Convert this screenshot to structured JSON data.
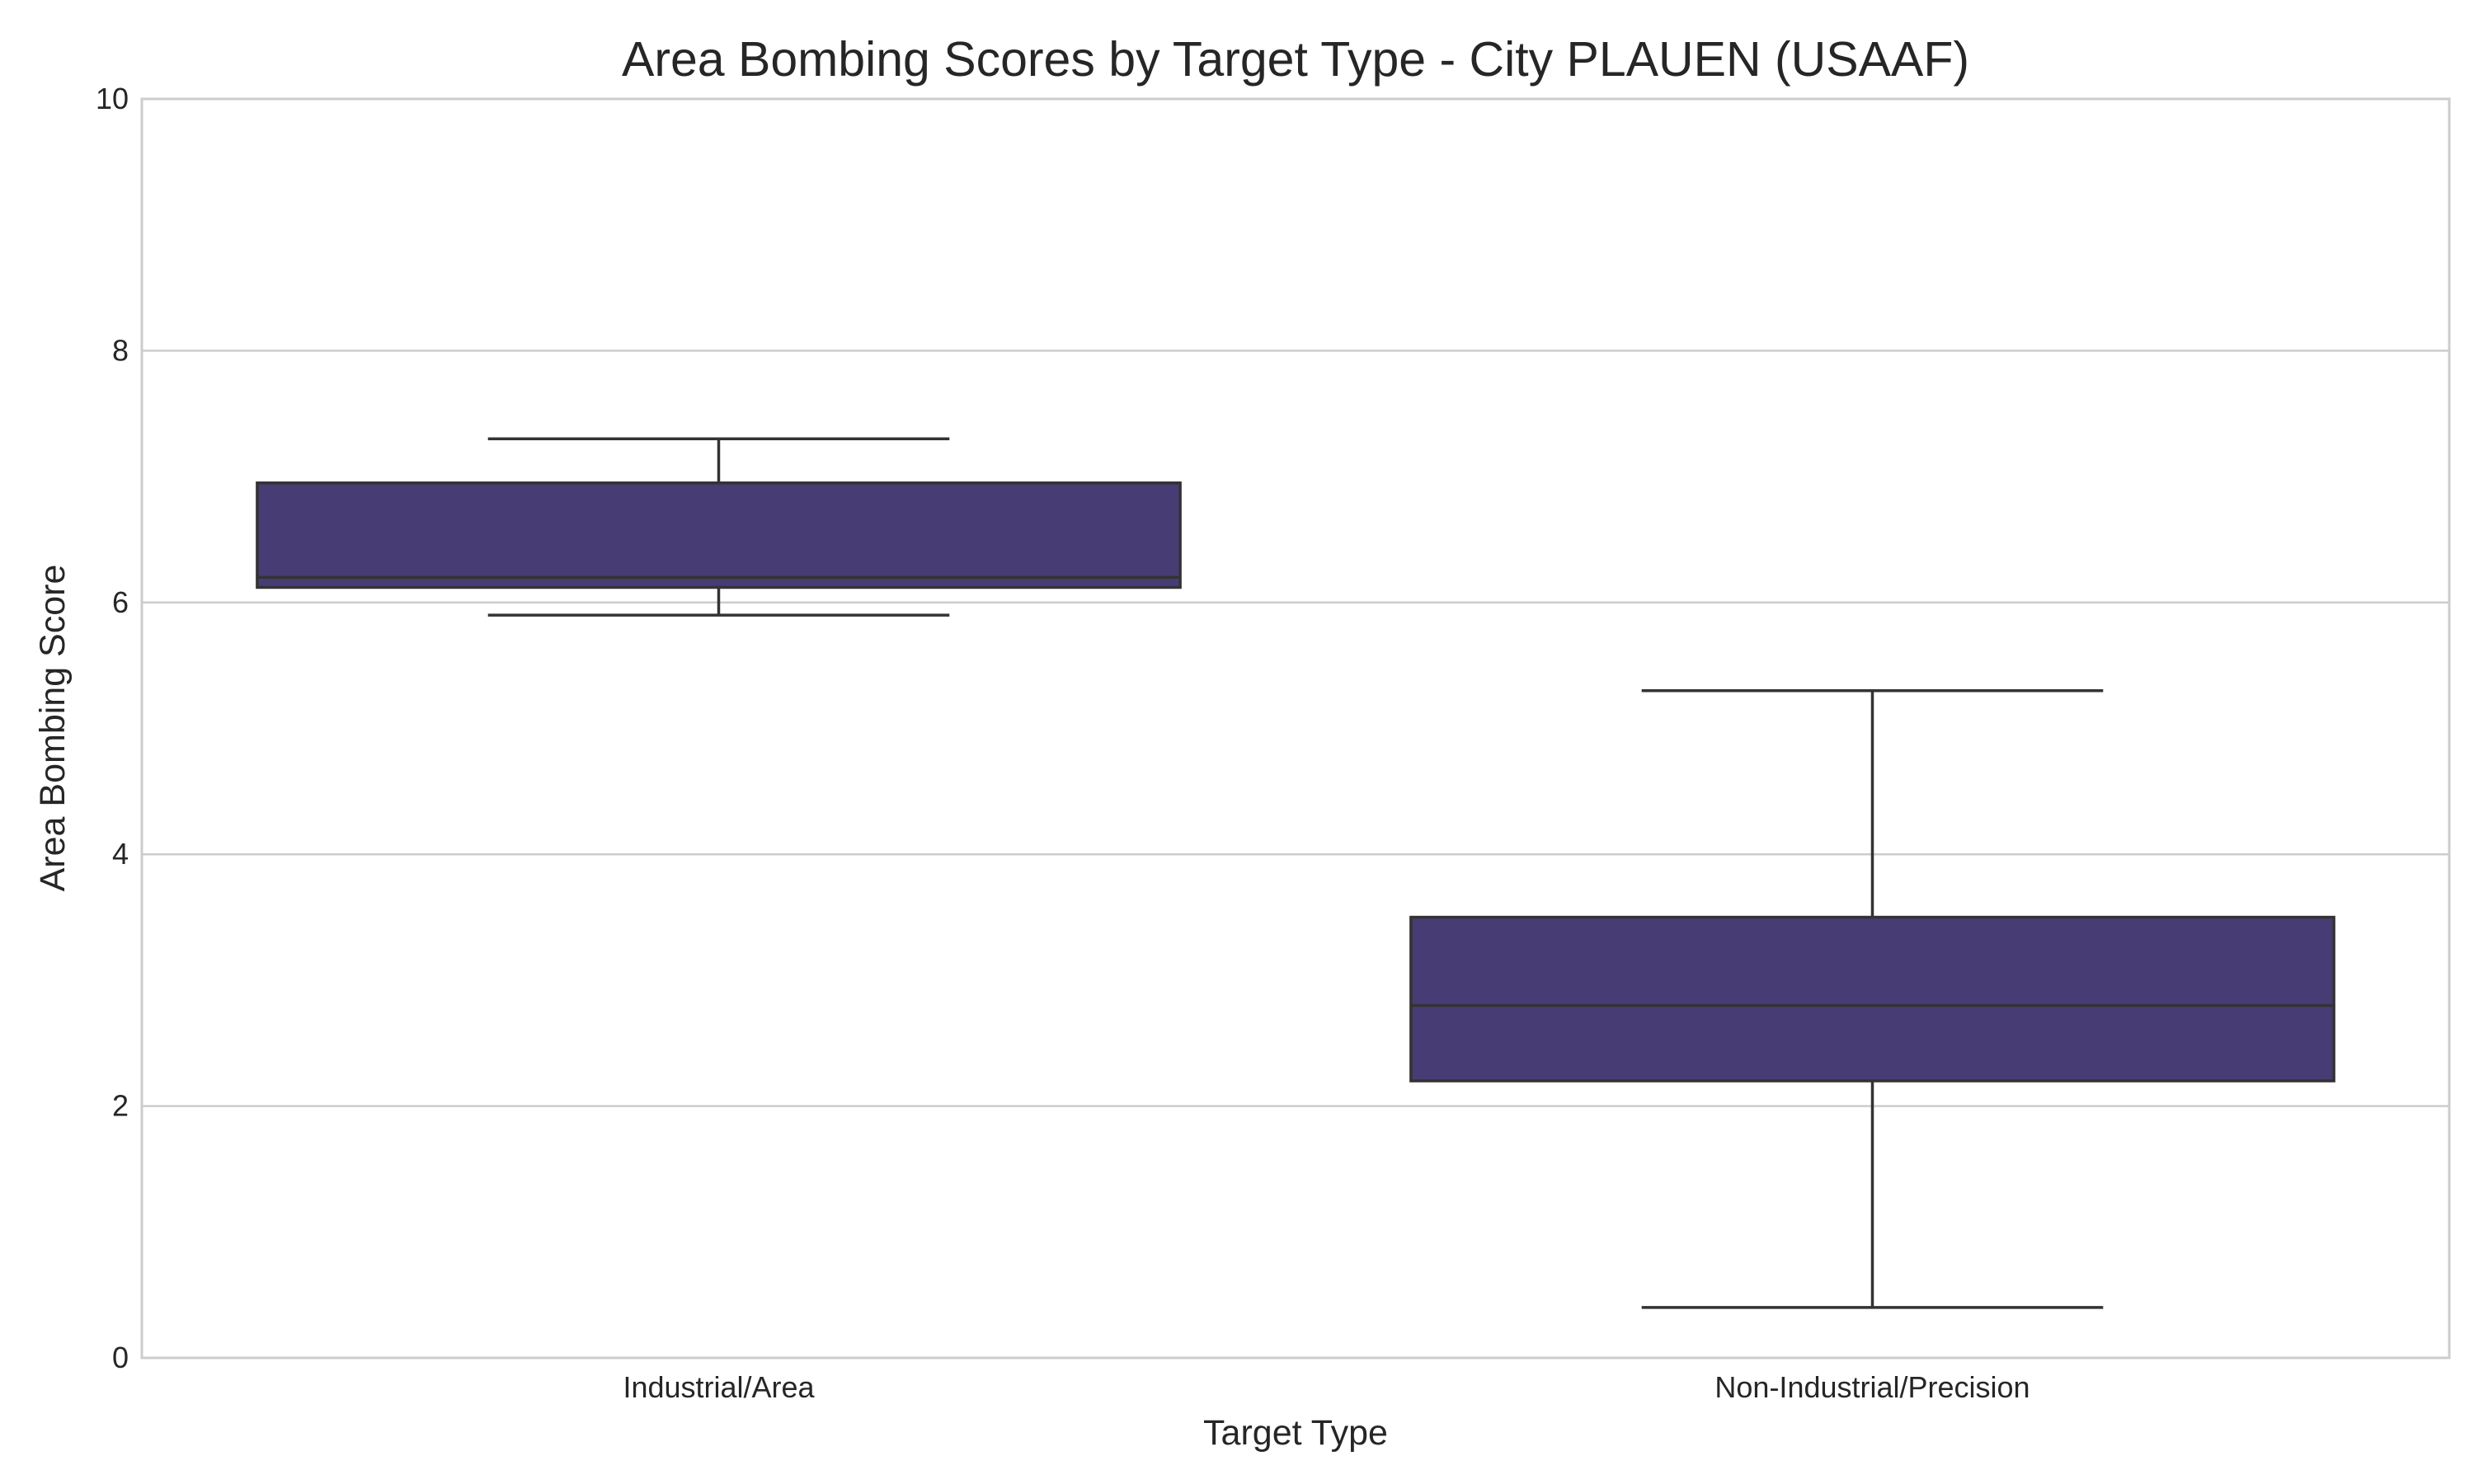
{
  "chart_data": {
    "type": "box",
    "title": "Area Bombing Scores by Target Type - City PLAUEN (USAAF)",
    "xlabel": "Target Type",
    "ylabel": "Area Bombing Score",
    "ylim": [
      0,
      10
    ],
    "yticks": [
      "0",
      "2",
      "4",
      "6",
      "8",
      "10"
    ],
    "grid": true,
    "box_color": "#483c75",
    "categories": [
      "Industrial/Area",
      "Non-Industrial/Precision"
    ],
    "boxes": [
      {
        "category": "Industrial/Area",
        "whisker_low": 5.9,
        "q1": 6.12,
        "median": 6.2,
        "q3": 6.95,
        "whisker_high": 7.3
      },
      {
        "category": "Non-Industrial/Precision",
        "whisker_low": 0.4,
        "q1": 2.2,
        "median": 2.8,
        "q3": 3.5,
        "whisker_high": 5.3
      }
    ]
  }
}
